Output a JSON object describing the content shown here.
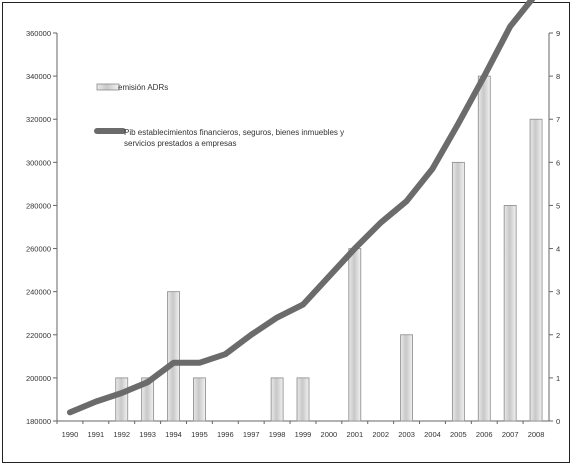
{
  "chart_data": {
    "type": "bar",
    "categories": [
      "1990",
      "1991",
      "1992",
      "1993",
      "1994",
      "1995",
      "1996",
      "1997",
      "1998",
      "1999",
      "2000",
      "2001",
      "2002",
      "2003",
      "2004",
      "2005",
      "2006",
      "2007",
      "2008"
    ],
    "series": [
      {
        "name": "emisión ADRs",
        "type": "bar",
        "axis": "right",
        "values": [
          0,
          0,
          1,
          1,
          3,
          1,
          0,
          0,
          1,
          1,
          0,
          4,
          0,
          2,
          0,
          6,
          8,
          5,
          7
        ]
      },
      {
        "name": "Pib establecimientos financieros, seguros, bienes inmuebles y servicios prestados a empresas",
        "name_lines": [
          "Pib establecimientos financieros, seguros, bienes inmuebles y",
          "servicios prestados a empresas"
        ],
        "type": "line",
        "axis": "left",
        "values": [
          184000,
          189000,
          193000,
          198000,
          207000,
          207000,
          211000,
          220000,
          228000,
          234000,
          247000,
          260000,
          272000,
          282000,
          297000,
          318000,
          340000,
          363000,
          378000
        ]
      }
    ],
    "y_left": {
      "ylim": [
        180000,
        360000
      ],
      "ticks": [
        "180000",
        "200000",
        "220000",
        "240000",
        "260000",
        "280000",
        "300000",
        "320000",
        "340000",
        "360000"
      ]
    },
    "y_right": {
      "ylim": [
        0,
        9
      ],
      "ticks": [
        "0",
        "1",
        "2",
        "3",
        "4",
        "5",
        "6",
        "7",
        "8",
        "9"
      ]
    },
    "grid": false,
    "legend_position": "top-left",
    "colors": {
      "bar_fill": "#cfcfcf",
      "bar_stroke": "#8a8a8a",
      "line": "#6b6b6b",
      "axis": "#666666",
      "text": "#333333"
    }
  }
}
